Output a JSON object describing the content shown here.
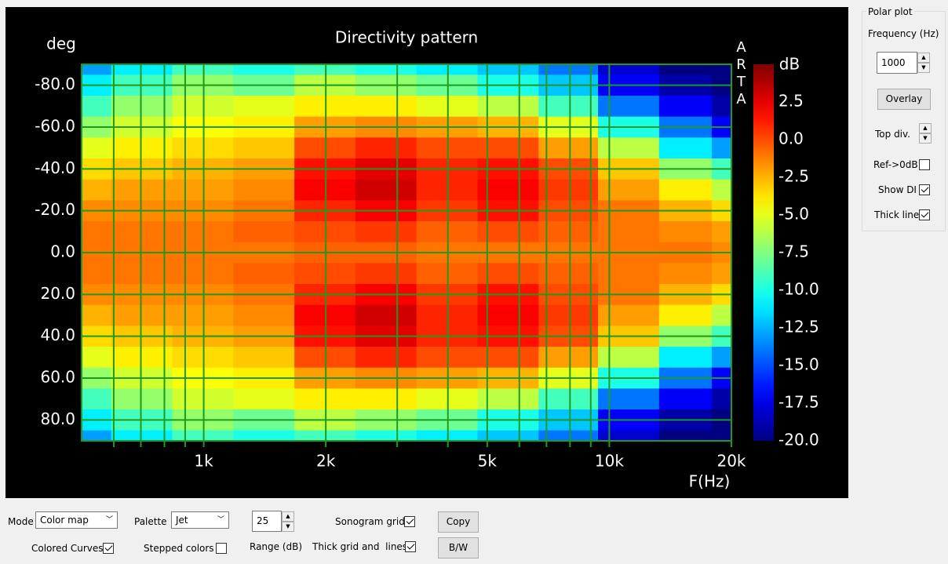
{
  "chart_data": {
    "type": "heatmap",
    "title": "Directivity pattern",
    "y_axis_label": "deg",
    "x_axis_label": "F(Hz)",
    "colorbar_label": "dB",
    "watermark": "ARTA",
    "x": [
      500,
      700,
      1000,
      1400,
      2000,
      2800,
      4000,
      5600,
      8000,
      11000,
      16000,
      20000
    ],
    "y": [
      -90,
      -80,
      -70,
      -60,
      -50,
      -40,
      -30,
      -20,
      -10,
      0,
      10,
      20,
      30,
      40,
      50,
      60,
      70,
      80,
      90
    ],
    "values": [
      [
        -13,
        -11,
        -9,
        -10,
        -9,
        -10,
        -11,
        -12,
        -14,
        -18,
        -20,
        -20
      ],
      [
        -11,
        -9,
        -7,
        -8,
        -6,
        -7,
        -8,
        -10,
        -12,
        -17,
        -19,
        -20
      ],
      [
        -9,
        -7,
        -5.5,
        -5,
        -4,
        -4,
        -5,
        -6,
        -9,
        -14,
        -17,
        -19
      ],
      [
        -7,
        -5.5,
        -4.5,
        -4,
        -2,
        -1.5,
        -2,
        -2.5,
        -5,
        -10,
        -14,
        -17
      ],
      [
        -5,
        -4,
        -3.5,
        -3,
        0,
        1,
        0,
        0,
        -2,
        -6,
        -11,
        -13
      ],
      [
        -3.5,
        -3,
        -2.5,
        -2,
        1.5,
        2.5,
        1,
        1.5,
        0,
        -3,
        -7,
        -9
      ],
      [
        -2.5,
        -2,
        -2,
        -1.5,
        2,
        3,
        1,
        2,
        0.5,
        -2,
        -4,
        -6
      ],
      [
        -1.5,
        -1.5,
        -1.5,
        -1,
        1,
        2,
        0.5,
        1.5,
        0,
        -1,
        -2.5,
        -3.5
      ],
      [
        -1,
        -1,
        -1,
        -0.5,
        0,
        0.5,
        -0.5,
        0,
        -0.5,
        -1,
        -1.5,
        -2
      ],
      [
        -1,
        -1,
        -1,
        -1,
        -0.5,
        -0.5,
        -1,
        -1,
        -1,
        -1,
        -1,
        -1.5
      ],
      [
        -1,
        -1,
        -1,
        -0.5,
        0,
        0.5,
        -0.5,
        0,
        -0.5,
        -1,
        -1.5,
        -2
      ],
      [
        -1.5,
        -1.5,
        -1.5,
        -1,
        1,
        2,
        0.5,
        1.5,
        0,
        -1,
        -2.5,
        -3.5
      ],
      [
        -2.5,
        -2,
        -2,
        -1.5,
        2,
        3,
        1,
        2,
        0.5,
        -2,
        -4,
        -6
      ],
      [
        -3.5,
        -3,
        -2.5,
        -2,
        1.5,
        2.5,
        1,
        1.5,
        0,
        -3,
        -7,
        -9
      ],
      [
        -5,
        -4,
        -3.5,
        -3,
        0,
        1,
        0,
        0,
        -2,
        -6,
        -11,
        -13
      ],
      [
        -7,
        -5.5,
        -4.5,
        -4,
        -2,
        -1.5,
        -2,
        -2.5,
        -5,
        -10,
        -14,
        -17
      ],
      [
        -9,
        -7,
        -5.5,
        -5,
        -4,
        -4,
        -5,
        -6,
        -9,
        -14,
        -17,
        -19
      ],
      [
        -11,
        -9,
        -7,
        -8,
        -6,
        -7,
        -8,
        -10,
        -12,
        -17,
        -19,
        -20
      ],
      [
        -13,
        -11,
        -9,
        -10,
        -9,
        -10,
        -11,
        -12,
        -14,
        -18,
        -20,
        -20
      ]
    ],
    "xlim": [
      500,
      20000
    ],
    "x_log": true,
    "xticks": [
      {
        "value": 1000,
        "label": "1k"
      },
      {
        "value": 2000,
        "label": "2k"
      },
      {
        "value": 5000,
        "label": "5k"
      },
      {
        "value": 10000,
        "label": "10k"
      },
      {
        "value": 20000,
        "label": "20k"
      }
    ],
    "xminor": [
      600,
      700,
      800,
      900,
      3000,
      4000,
      6000,
      7000,
      8000,
      9000
    ],
    "ylim": [
      -90,
      90
    ],
    "yticks": [
      {
        "value": -80,
        "label": "-80.0"
      },
      {
        "value": -60,
        "label": "-60.0"
      },
      {
        "value": -40,
        "label": "-40.0"
      },
      {
        "value": -20,
        "label": "-20.0"
      },
      {
        "value": 0,
        "label": "0.0"
      },
      {
        "value": 20,
        "label": "20.0"
      },
      {
        "value": 40,
        "label": "40.0"
      },
      {
        "value": 60,
        "label": "60.0"
      },
      {
        "value": 80,
        "label": "80.0"
      }
    ],
    "clim": [
      -20,
      5
    ],
    "cticks": [
      {
        "value": -20,
        "label": "-20.0"
      },
      -17.5,
      {
        "value": -15,
        "label": "-15.0"
      },
      -12.5,
      {
        "value": -10,
        "label": "-10.0"
      },
      -7.5,
      {
        "value": -5,
        "label": "-5.0"
      },
      -2.5,
      {
        "value": 0,
        "label": "0.0"
      },
      2.5
    ],
    "palette": "jet",
    "grid": true,
    "grid_color": "#1f9a1f"
  },
  "polar_panel": {
    "title": "Polar plot",
    "frequency_label": "Frequency (Hz)",
    "frequency_value": "1000",
    "overlay_button": "Overlay",
    "top_div_label": "Top div.",
    "ref_label": "Ref->0dB",
    "ref_checked": false,
    "show_di_label": "Show DI",
    "show_di_checked": true,
    "thick_line_label": "Thick line",
    "thick_line_checked": true
  },
  "bottom_panel": {
    "mode_label": "Mode",
    "mode_value": "Color map",
    "palette_label": "Palette",
    "palette_value": "Jet",
    "range_value": "25",
    "range_label": "Range (dB)",
    "sonogram_label": "Sonogram grid",
    "sonogram_checked": true,
    "copy_button": "Copy",
    "colored_label": "Colored Curves",
    "colored_checked": true,
    "stepped_label": "Stepped colors",
    "stepped_checked": false,
    "thick_grid_label": "Thick grid and  lines",
    "thick_grid_checked": true,
    "bw_button": "B/W"
  }
}
